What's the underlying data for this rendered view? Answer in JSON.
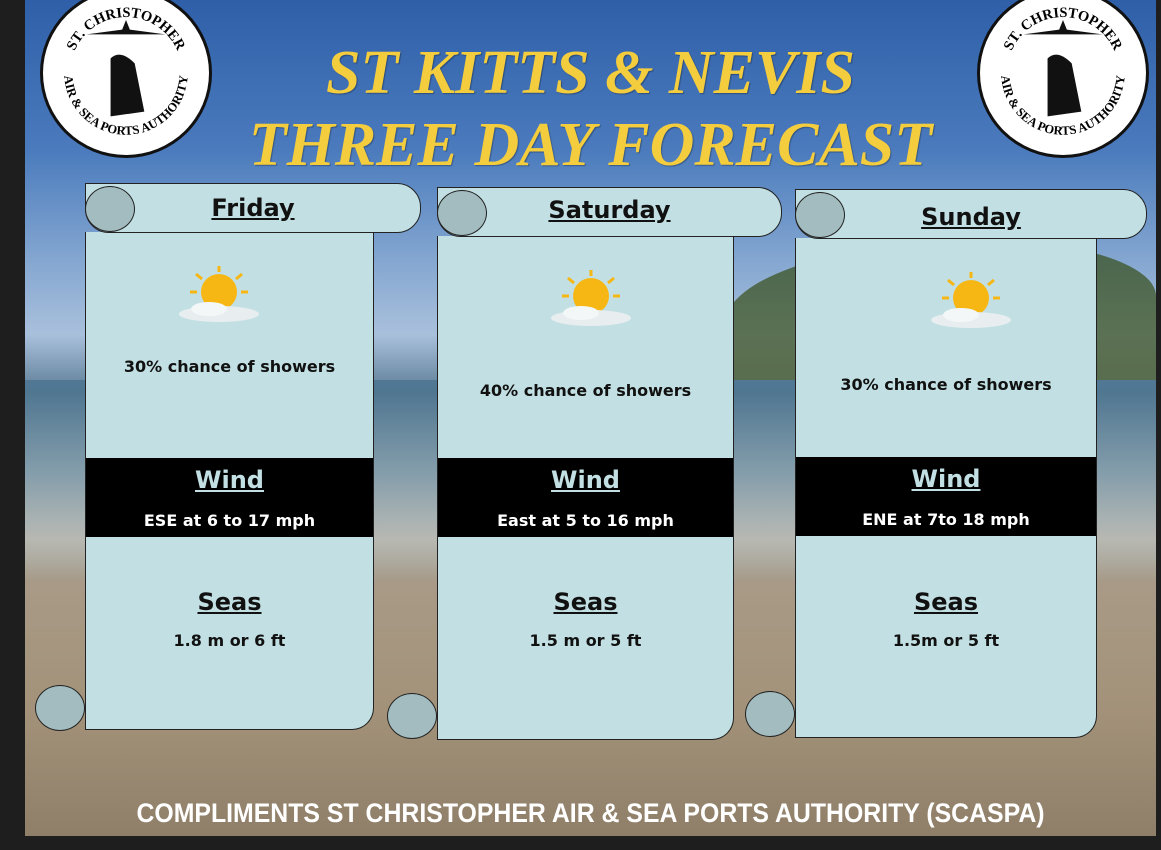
{
  "title": {
    "line1": "ST KITTS & NEVIS",
    "line2": "THREE DAY FORECAST"
  },
  "logo": {
    "text_top": "ST. CHRISTOPHER",
    "text_bottom": "AIR & SEA PORTS AUTHORITY"
  },
  "days": [
    {
      "day": "Friday",
      "icon": "sun-behind-cloud-icon",
      "showers": "30% chance of showers",
      "wind_label": "Wind",
      "wind": "ESE at 6 to 17 mph",
      "seas_label": "Seas",
      "seas": "1.8 m or 6 ft"
    },
    {
      "day": "Saturday",
      "icon": "sun-behind-cloud-icon",
      "showers": "40% chance of showers",
      "wind_label": "Wind",
      "wind": "East at 5 to 16 mph",
      "seas_label": "Seas",
      "seas": "1.5 m or 5 ft"
    },
    {
      "day": "Sunday",
      "icon": "sun-behind-cloud-icon",
      "showers": "30% chance of showers",
      "wind_label": "Wind",
      "wind": "ENE at 7to 18 mph",
      "seas_label": "Seas",
      "seas": "1.5m or 5 ft"
    }
  ],
  "footer": "COMPLIMENTS ST CHRISTOPHER AIR & SEA PORTS AUTHORITY (SCASPA)",
  "colors": {
    "title": "#f4cd3e",
    "scroll": "#c2e0e3",
    "band": "#000000"
  }
}
